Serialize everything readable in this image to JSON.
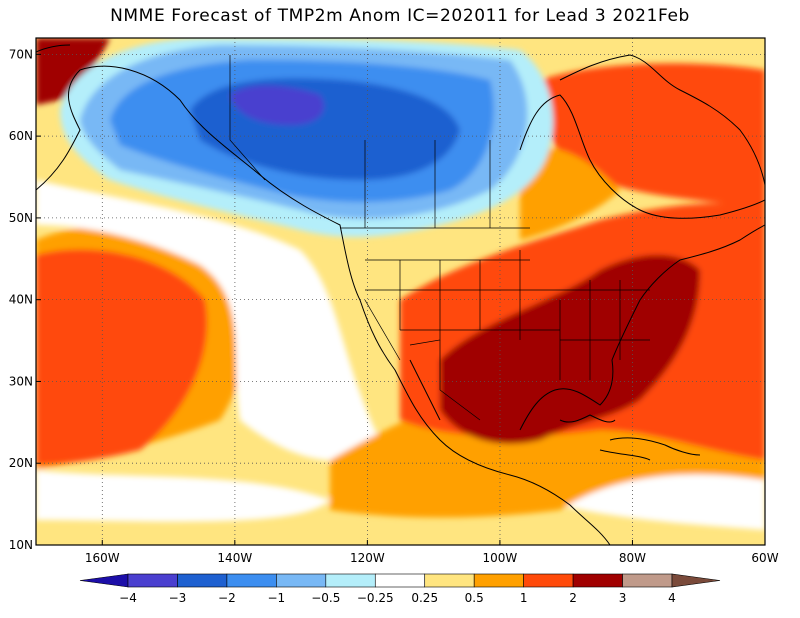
{
  "title": "NMME Forecast of TMP2m Anom IC=202011 for Lead 3 2021Feb",
  "map": {
    "lon_range": [
      -170,
      -60
    ],
    "lat_range": [
      10,
      72
    ],
    "lon_ticks": [
      {
        "value": -160,
        "label": "160W"
      },
      {
        "value": -140,
        "label": "140W"
      },
      {
        "value": -120,
        "label": "120W"
      },
      {
        "value": -100,
        "label": "100W"
      },
      {
        "value": -80,
        "label": "80W"
      },
      {
        "value": -60,
        "label": "60W"
      }
    ],
    "lat_ticks": [
      {
        "value": 10,
        "label": "10N"
      },
      {
        "value": 20,
        "label": "20N"
      },
      {
        "value": 30,
        "label": "30N"
      },
      {
        "value": 40,
        "label": "40N"
      },
      {
        "value": 50,
        "label": "50N"
      },
      {
        "value": 60,
        "label": "60N"
      },
      {
        "value": 70,
        "label": "70N"
      }
    ],
    "gridlines": true
  },
  "colorbar": {
    "colors": [
      "#1c0ea8",
      "#4a3fcf",
      "#1e60d0",
      "#3c8ef0",
      "#78b8f5",
      "#b4eefa",
      "#ffffff",
      "#ffe580",
      "#ffa000",
      "#ff4a0a",
      "#a00000",
      "#c09a8a",
      "#7a4a3a"
    ],
    "labels": [
      "−4",
      "−3",
      "−2",
      "−1",
      "−0.5",
      "−0.25",
      "0.25",
      "0.5",
      "1",
      "2",
      "3",
      "4"
    ]
  }
}
